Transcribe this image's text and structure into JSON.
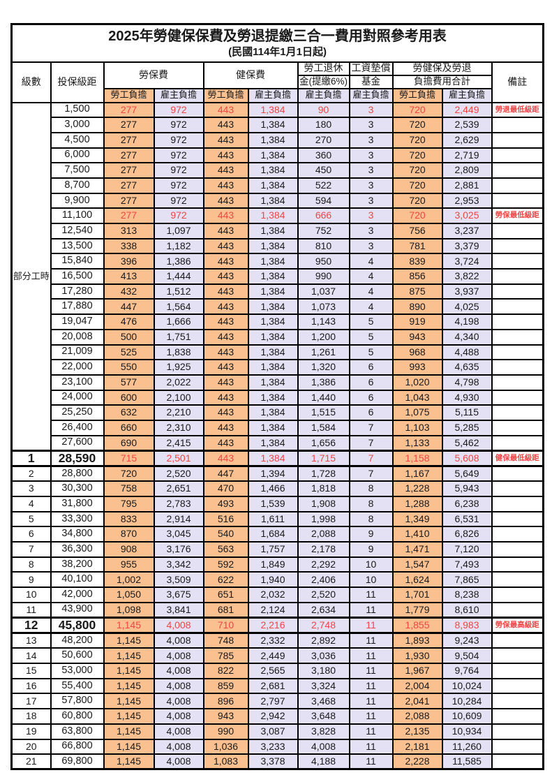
{
  "title": "2025年勞健保保費及勞退提繳三合一費用對照參考用表",
  "subtitle": "(民國114年1月1日起)",
  "columns": {
    "level": "級數",
    "bracket": "投保級距",
    "labor": "勞保費",
    "health": "健保費",
    "pension_top": "勞工退休",
    "pension_bottom": "金(提繳6%)",
    "fund_top": "工資墊償",
    "fund_bottom": "基金",
    "total_top": "勞健保及勞退",
    "total_bottom": "負擔費用合計",
    "remark": "備註",
    "employee_label": "勞工負擔",
    "employer_label": "雇主負擔"
  },
  "part_time_label": "部分工時",
  "part_time_rowspan": 23,
  "colors": {
    "employee_bg": "#FAC090",
    "employer_bg": "#E3E1F3",
    "highlight_red": "#F04545"
  },
  "rows": [
    {
      "level": "",
      "bracket": "1,500",
      "values": [
        "277",
        "972",
        "443",
        "1,384",
        "90",
        "3",
        "720",
        "2,449"
      ],
      "remark": "勞退最低級距",
      "red": true,
      "em": false
    },
    {
      "level": "",
      "bracket": "3,000",
      "values": [
        "277",
        "972",
        "443",
        "1,384",
        "180",
        "3",
        "720",
        "2,539"
      ],
      "remark": "",
      "red": false,
      "em": false
    },
    {
      "level": "",
      "bracket": "4,500",
      "values": [
        "277",
        "972",
        "443",
        "1,384",
        "270",
        "3",
        "720",
        "2,629"
      ],
      "remark": "",
      "red": false,
      "em": false
    },
    {
      "level": "",
      "bracket": "6,000",
      "values": [
        "277",
        "972",
        "443",
        "1,384",
        "360",
        "3",
        "720",
        "2,719"
      ],
      "remark": "",
      "red": false,
      "em": false
    },
    {
      "level": "",
      "bracket": "7,500",
      "values": [
        "277",
        "972",
        "443",
        "1,384",
        "450",
        "3",
        "720",
        "2,809"
      ],
      "remark": "",
      "red": false,
      "em": false
    },
    {
      "level": "",
      "bracket": "8,700",
      "values": [
        "277",
        "972",
        "443",
        "1,384",
        "522",
        "3",
        "720",
        "2,881"
      ],
      "remark": "",
      "red": false,
      "em": false
    },
    {
      "level": "",
      "bracket": "9,900",
      "values": [
        "277",
        "972",
        "443",
        "1,384",
        "594",
        "3",
        "720",
        "2,953"
      ],
      "remark": "",
      "red": false,
      "em": false
    },
    {
      "level": "",
      "bracket": "11,100",
      "values": [
        "277",
        "972",
        "443",
        "1,384",
        "666",
        "3",
        "720",
        "3,025"
      ],
      "remark": "勞保最低級距",
      "red": true,
      "em": false
    },
    {
      "level": "",
      "bracket": "12,540",
      "values": [
        "313",
        "1,097",
        "443",
        "1,384",
        "752",
        "3",
        "756",
        "3,237"
      ],
      "remark": "",
      "red": false,
      "em": false
    },
    {
      "level": "",
      "bracket": "13,500",
      "values": [
        "338",
        "1,182",
        "443",
        "1,384",
        "810",
        "3",
        "781",
        "3,379"
      ],
      "remark": "",
      "red": false,
      "em": false
    },
    {
      "level": "",
      "bracket": "15,840",
      "values": [
        "396",
        "1,386",
        "443",
        "1,384",
        "950",
        "4",
        "839",
        "3,724"
      ],
      "remark": "",
      "red": false,
      "em": false
    },
    {
      "level": "",
      "bracket": "16,500",
      "values": [
        "413",
        "1,444",
        "443",
        "1,384",
        "990",
        "4",
        "856",
        "3,822"
      ],
      "remark": "",
      "red": false,
      "em": false
    },
    {
      "level": "",
      "bracket": "17,280",
      "values": [
        "432",
        "1,512",
        "443",
        "1,384",
        "1,037",
        "4",
        "875",
        "3,937"
      ],
      "remark": "",
      "red": false,
      "em": false
    },
    {
      "level": "",
      "bracket": "17,880",
      "values": [
        "447",
        "1,564",
        "443",
        "1,384",
        "1,073",
        "4",
        "890",
        "4,025"
      ],
      "remark": "",
      "red": false,
      "em": false
    },
    {
      "level": "",
      "bracket": "19,047",
      "values": [
        "476",
        "1,666",
        "443",
        "1,384",
        "1,143",
        "5",
        "919",
        "4,198"
      ],
      "remark": "",
      "red": false,
      "em": false
    },
    {
      "level": "",
      "bracket": "20,008",
      "values": [
        "500",
        "1,751",
        "443",
        "1,384",
        "1,200",
        "5",
        "943",
        "4,340"
      ],
      "remark": "",
      "red": false,
      "em": false
    },
    {
      "level": "",
      "bracket": "21,009",
      "values": [
        "525",
        "1,838",
        "443",
        "1,384",
        "1,261",
        "5",
        "968",
        "4,488"
      ],
      "remark": "",
      "red": false,
      "em": false
    },
    {
      "level": "",
      "bracket": "22,000",
      "values": [
        "550",
        "1,925",
        "443",
        "1,384",
        "1,320",
        "6",
        "993",
        "4,635"
      ],
      "remark": "",
      "red": false,
      "em": false
    },
    {
      "level": "",
      "bracket": "23,100",
      "values": [
        "577",
        "2,022",
        "443",
        "1,384",
        "1,386",
        "6",
        "1,020",
        "4,798"
      ],
      "remark": "",
      "red": false,
      "em": false
    },
    {
      "level": "",
      "bracket": "24,000",
      "values": [
        "600",
        "2,100",
        "443",
        "1,384",
        "1,440",
        "6",
        "1,043",
        "4,930"
      ],
      "remark": "",
      "red": false,
      "em": false
    },
    {
      "level": "",
      "bracket": "25,250",
      "values": [
        "632",
        "2,210",
        "443",
        "1,384",
        "1,515",
        "6",
        "1,075",
        "5,115"
      ],
      "remark": "",
      "red": false,
      "em": false
    },
    {
      "level": "",
      "bracket": "26,400",
      "values": [
        "660",
        "2,310",
        "443",
        "1,384",
        "1,584",
        "7",
        "1,103",
        "5,285"
      ],
      "remark": "",
      "red": false,
      "em": false
    },
    {
      "level": "",
      "bracket": "27,600",
      "values": [
        "690",
        "2,415",
        "443",
        "1,384",
        "1,656",
        "7",
        "1,133",
        "5,462"
      ],
      "remark": "",
      "red": false,
      "em": false
    },
    {
      "level": "1",
      "bracket": "28,590",
      "values": [
        "715",
        "2,501",
        "443",
        "1,384",
        "1,715",
        "7",
        "1,158",
        "5,608"
      ],
      "remark": "健保最低級距",
      "red": true,
      "em": true
    },
    {
      "level": "2",
      "bracket": "28,800",
      "values": [
        "720",
        "2,520",
        "447",
        "1,394",
        "1,728",
        "7",
        "1,167",
        "5,649"
      ],
      "remark": "",
      "red": false,
      "em": false
    },
    {
      "level": "3",
      "bracket": "30,300",
      "values": [
        "758",
        "2,651",
        "470",
        "1,466",
        "1,818",
        "8",
        "1,228",
        "5,943"
      ],
      "remark": "",
      "red": false,
      "em": false
    },
    {
      "level": "4",
      "bracket": "31,800",
      "values": [
        "795",
        "2,783",
        "493",
        "1,539",
        "1,908",
        "8",
        "1,288",
        "6,238"
      ],
      "remark": "",
      "red": false,
      "em": false
    },
    {
      "level": "5",
      "bracket": "33,300",
      "values": [
        "833",
        "2,914",
        "516",
        "1,611",
        "1,998",
        "8",
        "1,349",
        "6,531"
      ],
      "remark": "",
      "red": false,
      "em": false
    },
    {
      "level": "6",
      "bracket": "34,800",
      "values": [
        "870",
        "3,045",
        "540",
        "1,684",
        "2,088",
        "9",
        "1,410",
        "6,826"
      ],
      "remark": "",
      "red": false,
      "em": false
    },
    {
      "level": "7",
      "bracket": "36,300",
      "values": [
        "908",
        "3,176",
        "563",
        "1,757",
        "2,178",
        "9",
        "1,471",
        "7,120"
      ],
      "remark": "",
      "red": false,
      "em": false
    },
    {
      "level": "8",
      "bracket": "38,200",
      "values": [
        "955",
        "3,342",
        "592",
        "1,849",
        "2,292",
        "10",
        "1,547",
        "7,493"
      ],
      "remark": "",
      "red": false,
      "em": false
    },
    {
      "level": "9",
      "bracket": "40,100",
      "values": [
        "1,002",
        "3,509",
        "622",
        "1,940",
        "2,406",
        "10",
        "1,624",
        "7,865"
      ],
      "remark": "",
      "red": false,
      "em": false
    },
    {
      "level": "10",
      "bracket": "42,000",
      "values": [
        "1,050",
        "3,675",
        "651",
        "2,032",
        "2,520",
        "11",
        "1,701",
        "8,238"
      ],
      "remark": "",
      "red": false,
      "em": false
    },
    {
      "level": "11",
      "bracket": "43,900",
      "values": [
        "1,098",
        "3,841",
        "681",
        "2,124",
        "2,634",
        "11",
        "1,779",
        "8,610"
      ],
      "remark": "",
      "red": false,
      "em": false
    },
    {
      "level": "12",
      "bracket": "45,800",
      "values": [
        "1,145",
        "4,008",
        "710",
        "2,216",
        "2,748",
        "11",
        "1,855",
        "8,983"
      ],
      "remark": "勞保最高級距",
      "red": true,
      "em": true
    },
    {
      "level": "13",
      "bracket": "48,200",
      "values": [
        "1,145",
        "4,008",
        "748",
        "2,332",
        "2,892",
        "11",
        "1,893",
        "9,243"
      ],
      "remark": "",
      "red": false,
      "em": false
    },
    {
      "level": "14",
      "bracket": "50,600",
      "values": [
        "1,145",
        "4,008",
        "785",
        "2,449",
        "3,036",
        "11",
        "1,930",
        "9,504"
      ],
      "remark": "",
      "red": false,
      "em": false
    },
    {
      "level": "15",
      "bracket": "53,000",
      "values": [
        "1,145",
        "4,008",
        "822",
        "2,565",
        "3,180",
        "11",
        "1,967",
        "9,764"
      ],
      "remark": "",
      "red": false,
      "em": false
    },
    {
      "level": "16",
      "bracket": "55,400",
      "values": [
        "1,145",
        "4,008",
        "859",
        "2,681",
        "3,324",
        "11",
        "2,004",
        "10,024"
      ],
      "remark": "",
      "red": false,
      "em": false
    },
    {
      "level": "17",
      "bracket": "57,800",
      "values": [
        "1,145",
        "4,008",
        "896",
        "2,797",
        "3,468",
        "11",
        "2,041",
        "10,284"
      ],
      "remark": "",
      "red": false,
      "em": false
    },
    {
      "level": "18",
      "bracket": "60,800",
      "values": [
        "1,145",
        "4,008",
        "943",
        "2,942",
        "3,648",
        "11",
        "2,088",
        "10,609"
      ],
      "remark": "",
      "red": false,
      "em": false
    },
    {
      "level": "19",
      "bracket": "63,800",
      "values": [
        "1,145",
        "4,008",
        "990",
        "3,087",
        "3,828",
        "11",
        "2,135",
        "10,934"
      ],
      "remark": "",
      "red": false,
      "em": false
    },
    {
      "level": "20",
      "bracket": "66,800",
      "values": [
        "1,145",
        "4,008",
        "1,036",
        "3,233",
        "4,008",
        "11",
        "2,181",
        "11,260"
      ],
      "remark": "",
      "red": false,
      "em": false
    },
    {
      "level": "21",
      "bracket": "69,800",
      "values": [
        "1,145",
        "4,008",
        "1,083",
        "3,378",
        "4,188",
        "11",
        "2,228",
        "11,585"
      ],
      "remark": "",
      "red": false,
      "em": false
    }
  ]
}
